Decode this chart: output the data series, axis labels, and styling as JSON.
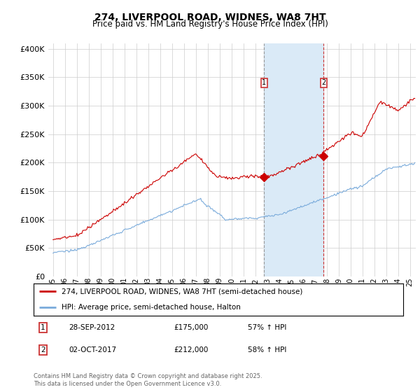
{
  "title": "274, LIVERPOOL ROAD, WIDNES, WA8 7HT",
  "subtitle": "Price paid vs. HM Land Registry's House Price Index (HPI)",
  "ytick_vals": [
    0,
    50000,
    100000,
    150000,
    200000,
    250000,
    300000,
    350000,
    400000
  ],
  "ylim": [
    0,
    410000
  ],
  "xlim_start": 1994.6,
  "xlim_end": 2025.5,
  "purchase1_date": 2012.75,
  "purchase1_price": 175000,
  "purchase2_date": 2017.75,
  "purchase2_price": 212000,
  "shade_color": "#daeaf7",
  "vline_color": "#aaaaaa",
  "vline2_color": "#cc3333",
  "line_color_red": "#cc0000",
  "line_color_blue": "#7aabdb",
  "legend_label_red": "274, LIVERPOOL ROAD, WIDNES, WA8 7HT (semi-detached house)",
  "legend_label_blue": "HPI: Average price, semi-detached house, Halton",
  "annot1_label": "1",
  "annot1_date": "28-SEP-2012",
  "annot1_price": "£175,000",
  "annot1_hpi": "57% ↑ HPI",
  "annot2_label": "2",
  "annot2_date": "02-OCT-2017",
  "annot2_price": "£212,000",
  "annot2_hpi": "58% ↑ HPI",
  "footer": "Contains HM Land Registry data © Crown copyright and database right 2025.\nThis data is licensed under the Open Government Licence v3.0.",
  "bg_color": "#ffffff",
  "grid_color": "#cccccc"
}
